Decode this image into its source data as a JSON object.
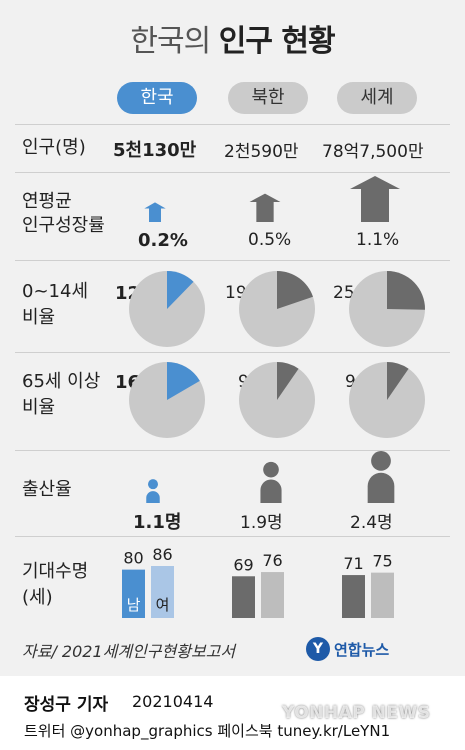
{
  "title": {
    "light": "한국의",
    "bold": "인구 현황"
  },
  "tabs": [
    {
      "label": "한국",
      "active": true
    },
    {
      "label": "북한",
      "active": false
    },
    {
      "label": "세계",
      "active": false
    }
  ],
  "rows": {
    "population": {
      "label": "인구(명)",
      "values": [
        "5천130만",
        "2천590만",
        "78억7,500만"
      ]
    },
    "growth": {
      "label_line1": "연평균",
      "label_line2": "인구성장률",
      "values": [
        "0.2%",
        "0.5%",
        "1.1%"
      ]
    },
    "young": {
      "label_line1": "0~14세",
      "label_line2": "비율",
      "values": [
        "12.3%",
        "19.8%",
        "25.3%"
      ]
    },
    "old": {
      "label_line1": "65세 이상",
      "label_line2": "비율",
      "values": [
        "16.6%",
        "9.6%",
        "9.6%"
      ]
    },
    "fertility": {
      "label": "출산율",
      "values": [
        "1.1명",
        "1.9명",
        "2.4명"
      ]
    },
    "life": {
      "label_line1": "기대수명",
      "label_line2": "(세)",
      "male_label": "남",
      "female_label": "여"
    }
  },
  "chart_data": {
    "type": "table",
    "columns": [
      "한국",
      "북한",
      "세계"
    ],
    "population": [
      "5천130만",
      "2천590만",
      "78억7,500만"
    ],
    "annual_growth_rate_pct": [
      0.2,
      0.5,
      1.1
    ],
    "age_0_14_pct": [
      12.3,
      19.8,
      25.3
    ],
    "age_65_plus_pct": [
      16.6,
      9.6,
      9.6
    ],
    "fertility_rate": [
      1.1,
      1.9,
      2.4
    ],
    "life_expectancy": {
      "male": [
        80,
        69,
        71
      ],
      "female": [
        86,
        76,
        75
      ]
    }
  },
  "colors": {
    "korea": "#4a8fd0",
    "korea_light": "#aac6e6",
    "other_dark": "#6b6b6b",
    "other_light": "#bdbdbd",
    "pie_base": "#c9c9c9"
  },
  "footer": {
    "source": "자료/ 2021세계인구현황보고서",
    "logo_text": "연합뉴스",
    "author": "장성구 기자",
    "date": "20210414",
    "social": "트위터 @yonhap_graphics  페이스북 tuney.kr/LeYN1",
    "watermark": "YONHAP NEWS"
  }
}
